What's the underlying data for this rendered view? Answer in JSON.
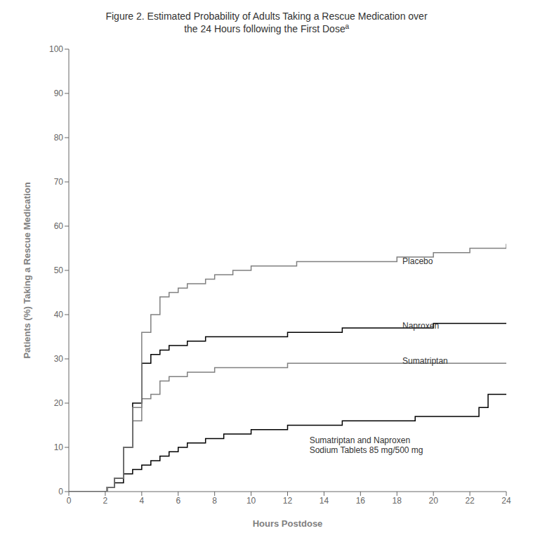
{
  "chart_data": {
    "type": "line",
    "line_style": "step",
    "title": "Figure 2. Estimated Probability of Adults Taking a Rescue Medication over\nthe 24 Hours following the First Doseª",
    "xlabel": "Hours Postdose",
    "ylabel": "Patients (%) Taking a Rescue Medication",
    "xlim": [
      0,
      24
    ],
    "ylim": [
      0,
      100
    ],
    "xticks": [
      0,
      2,
      4,
      6,
      8,
      10,
      12,
      14,
      16,
      18,
      20,
      22,
      24
    ],
    "yticks": [
      0,
      10,
      20,
      30,
      40,
      50,
      60,
      70,
      80,
      90,
      100
    ],
    "grid": false,
    "series": [
      {
        "name": "Sumatriptan and Naproxen\nSodium Tablets 85 mg/500 mg",
        "color": "#000000",
        "label_x": 13.2,
        "label_y": 10.5,
        "x": [
          0,
          2.0,
          2.1,
          2.5,
          3.0,
          3.5,
          4.0,
          4.5,
          5.0,
          5.5,
          6.0,
          6.5,
          7.0,
          7.5,
          8.0,
          8.5,
          9.0,
          10.0,
          11.0,
          12.0,
          13.0,
          14.0,
          15.0,
          16.0,
          17.0,
          18.0,
          19.0,
          20.0,
          21.0,
          22.0,
          22.5,
          23.0,
          24.0
        ],
        "values": [
          0,
          0,
          1,
          2,
          4,
          5,
          6,
          7,
          8,
          9,
          10,
          11,
          11,
          12,
          12,
          13,
          13,
          14,
          14,
          15,
          15,
          15,
          16,
          16,
          16,
          16,
          17,
          17,
          17,
          17,
          19,
          22,
          22
        ]
      },
      {
        "name": "Sumatriptan",
        "color": "#808080",
        "label_x": 18.3,
        "label_y": 29.5,
        "x": [
          0,
          2.0,
          2.1,
          2.5,
          3.0,
          3.5,
          4.0,
          4.5,
          5.0,
          5.5,
          6.0,
          6.5,
          7.0,
          7.5,
          8.0,
          8.5,
          9.0,
          10.0,
          11.0,
          12.0,
          13.0,
          14.0,
          15.0,
          16.0,
          17.0,
          18.0,
          19.0,
          20.0,
          21.0,
          22.0,
          23.0,
          24.0
        ],
        "values": [
          0,
          0,
          1,
          3,
          10,
          16,
          21,
          22,
          25,
          26,
          26,
          27,
          27,
          27,
          28,
          28,
          28,
          28,
          28,
          29,
          29,
          29,
          29,
          29,
          29,
          29,
          29,
          29,
          29,
          29,
          29,
          29
        ]
      },
      {
        "name": "Naproxen",
        "color": "#000000",
        "label_x": 18.3,
        "label_y": 37.5,
        "x": [
          0,
          2.0,
          2.1,
          2.5,
          3.0,
          3.5,
          4.0,
          4.5,
          5.0,
          5.5,
          6.0,
          6.5,
          7.0,
          7.5,
          8.0,
          8.5,
          9.0,
          10.0,
          11.0,
          12.0,
          13.0,
          14.0,
          15.0,
          16.0,
          17.0,
          18.0,
          19.0,
          20.0,
          21.0,
          22.0,
          23.0,
          24.0
        ],
        "values": [
          0,
          0,
          1,
          3,
          10,
          20,
          29,
          31,
          32,
          33,
          33,
          34,
          34,
          35,
          35,
          35,
          35,
          35,
          35,
          36,
          36,
          36,
          37,
          37,
          37,
          37,
          37,
          38,
          38,
          38,
          38,
          38
        ]
      },
      {
        "name": "Placebo",
        "color": "#808080",
        "label_x": 18.3,
        "label_y": 52.0,
        "x": [
          0,
          2.0,
          2.1,
          2.5,
          3.0,
          3.5,
          4.0,
          4.5,
          5.0,
          5.5,
          6.0,
          6.5,
          7.0,
          7.5,
          8.0,
          8.5,
          9.0,
          9.5,
          10.0,
          10.5,
          11.0,
          12.0,
          12.5,
          13.0,
          14.0,
          15.0,
          16.0,
          17.5,
          18.0,
          19.0,
          20.0,
          21.0,
          22.0,
          22.5,
          23.0,
          24.0
        ],
        "values": [
          0,
          0,
          1,
          3,
          10,
          19,
          36,
          40,
          44,
          45,
          46,
          47,
          47,
          48,
          49,
          49,
          50,
          50,
          51,
          51,
          51,
          51,
          52,
          52,
          52,
          52,
          52,
          52,
          53,
          53,
          54,
          54,
          55,
          55,
          55,
          56
        ]
      }
    ]
  }
}
